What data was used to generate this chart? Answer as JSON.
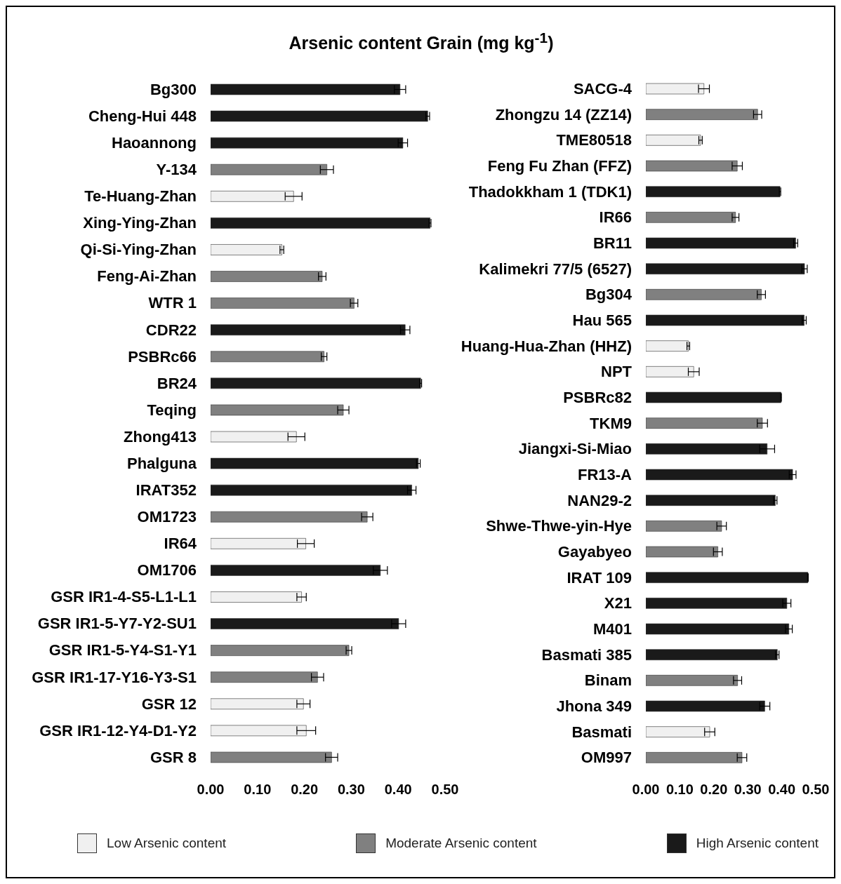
{
  "chart_data": [
    {
      "type": "bar",
      "orientation": "horizontal",
      "stacked": true,
      "title": "Arsenic content Grain (mg kg$^{-1}$)",
      "categories": [
        "Bg300",
        "Cheng-Hui 448",
        "Haoannong",
        "Y-134",
        "Te-Huang-Zhan",
        "Xing-Ying-Zhan",
        "Qi-Si-Ying-Zhan",
        "Feng-Ai-Zhan",
        "WTR 1",
        "CDR22",
        "PSBRc66",
        "BR24",
        "Teqing",
        "Zhong413",
        "Phalguna",
        "IRAT352",
        "OM1723",
        "IR64",
        "OM1706",
        "GSR IR1-4-S5-L1-L1",
        "GSR IR1-5-Y7-Y2-SU1",
        "GSR IR1-5-Y4-S1-Y1",
        "GSR IR1-17-Y16-Y3-S1",
        "GSR 12",
        "GSR IR1-12-Y4-D1-Y2",
        "GSR 8"
      ],
      "series": [
        {
          "color": "#f0f0f0",
          "values": [
            null,
            null,
            null,
            null,
            0.177,
            null,
            0.152,
            null,
            null,
            null,
            null,
            null,
            null,
            0.183,
            null,
            null,
            null,
            0.203,
            null,
            0.194,
            null,
            null,
            null,
            0.198,
            0.204,
            null
          ],
          "errors": [
            null,
            null,
            null,
            null,
            0.018,
            null,
            0.004,
            null,
            null,
            null,
            null,
            null,
            null,
            0.018,
            null,
            null,
            null,
            0.018,
            null,
            0.01,
            null,
            null,
            null,
            0.014,
            0.02,
            null
          ]
        },
        {
          "color": "#808080",
          "values": [
            null,
            null,
            null,
            0.248,
            null,
            null,
            null,
            0.238,
            0.306,
            null,
            0.242,
            null,
            0.283,
            null,
            null,
            null,
            0.334,
            null,
            null,
            null,
            null,
            0.295,
            0.228,
            null,
            null,
            0.258
          ],
          "errors": [
            null,
            null,
            null,
            0.014,
            null,
            null,
            null,
            0.008,
            0.008,
            null,
            0.006,
            null,
            0.012,
            null,
            null,
            null,
            0.012,
            null,
            null,
            null,
            null,
            0.006,
            0.013,
            null,
            null,
            0.013
          ]
        },
        {
          "color": "#1a1a1a",
          "values": [
            0.404,
            0.463,
            0.41,
            null,
            null,
            0.468,
            null,
            null,
            null,
            0.415,
            null,
            0.448,
            null,
            null,
            0.443,
            0.429,
            null,
            null,
            0.362,
            null,
            0.401,
            null,
            null,
            null,
            null,
            null
          ],
          "errors": [
            0.012,
            0.004,
            0.01,
            null,
            null,
            0.002,
            null,
            null,
            null,
            0.01,
            null,
            0.002,
            null,
            null,
            0.004,
            0.009,
            null,
            null,
            0.015,
            null,
            0.015,
            null,
            null,
            null,
            null,
            null
          ]
        }
      ],
      "xlim": [
        0,
        0.5
      ],
      "xticks": [
        {
          "value": 0,
          "label": "0.00"
        },
        {
          "value": 0.1,
          "label": "0.10"
        },
        {
          "value": 0.2,
          "label": "0.20"
        },
        {
          "value": 0.3,
          "label": "0.30"
        },
        {
          "value": 0.4,
          "label": "0.40"
        },
        {
          "value": 0.5,
          "label": "0.50"
        }
      ]
    },
    {
      "type": "bar",
      "orientation": "horizontal",
      "stacked": true,
      "legend": "bottom",
      "categories": [
        "SACG-4",
        "Zhongzu 14 (ZZ14)",
        "TME80518",
        "Feng Fu Zhan (FFZ)",
        "Thadokkham 1 (TDK1)",
        "IR66",
        "BR11",
        "Kalimekri 77/5 (6527)",
        "Bg304",
        "Hau 565",
        "Huang-Hua-Zhan (HHZ)",
        "NPT",
        "PSBRc82",
        "TKM9",
        "Jiangxi-Si-Miao",
        "FR13-A",
        "NAN29-2",
        "Shwe-Thwe-yin-Hye",
        "Gayabyeo",
        "IRAT 109",
        "X21",
        "M401",
        "Basmati 385",
        "Binam",
        "Jhona 349",
        "Basmati",
        "OM997"
      ],
      "series": [
        {
          "name": "Low Arsenic content",
          "color": "#f0f0f0",
          "values": [
            0.171,
            null,
            0.161,
            null,
            null,
            null,
            null,
            null,
            null,
            null,
            0.125,
            0.141,
            null,
            null,
            null,
            null,
            null,
            null,
            null,
            null,
            null,
            null,
            null,
            null,
            null,
            0.188,
            null
          ],
          "errors": [
            0.016,
            null,
            0.005,
            null,
            null,
            null,
            null,
            null,
            null,
            null,
            0.004,
            0.016,
            null,
            null,
            null,
            null,
            null,
            null,
            null,
            null,
            null,
            null,
            null,
            null,
            null,
            0.015,
            null
          ]
        },
        {
          "name": "Moderate Arsenic content",
          "color": "#808080",
          "values": [
            null,
            0.329,
            null,
            0.269,
            null,
            0.264,
            null,
            null,
            0.34,
            null,
            null,
            null,
            null,
            0.343,
            null,
            null,
            null,
            0.223,
            0.212,
            null,
            null,
            null,
            null,
            0.27,
            null,
            null,
            0.283
          ],
          "errors": [
            null,
            0.012,
            null,
            0.015,
            null,
            0.01,
            null,
            null,
            0.012,
            null,
            null,
            null,
            null,
            0.015,
            null,
            null,
            null,
            0.014,
            0.013,
            null,
            null,
            null,
            null,
            0.012,
            null,
            null,
            0.014
          ]
        },
        {
          "name": "High Arsenic content",
          "color": "#1a1a1a",
          "values": [
            null,
            null,
            null,
            null,
            0.395,
            null,
            0.441,
            0.467,
            null,
            0.466,
            null,
            null,
            0.398,
            null,
            0.357,
            0.432,
            0.381,
            null,
            null,
            0.477,
            0.415,
            0.421,
            0.387,
            null,
            0.35,
            null,
            null
          ],
          "errors": [
            null,
            null,
            null,
            null,
            0.002,
            null,
            0.006,
            0.008,
            null,
            0.006,
            null,
            null,
            0.001,
            null,
            0.022,
            0.01,
            0.005,
            null,
            null,
            0.001,
            0.012,
            0.01,
            0.005,
            null,
            0.015,
            null,
            null
          ]
        }
      ],
      "xlim": [
        0,
        0.5
      ],
      "xticks": [
        {
          "value": 0,
          "label": "0.00"
        },
        {
          "value": 0.1,
          "label": "0.10"
        },
        {
          "value": 0.2,
          "label": "0.20"
        },
        {
          "value": 0.3,
          "label": "0.30"
        },
        {
          "value": 0.4,
          "label": "0.40"
        },
        {
          "value": 0.5,
          "label": "0.50"
        }
      ]
    }
  ]
}
